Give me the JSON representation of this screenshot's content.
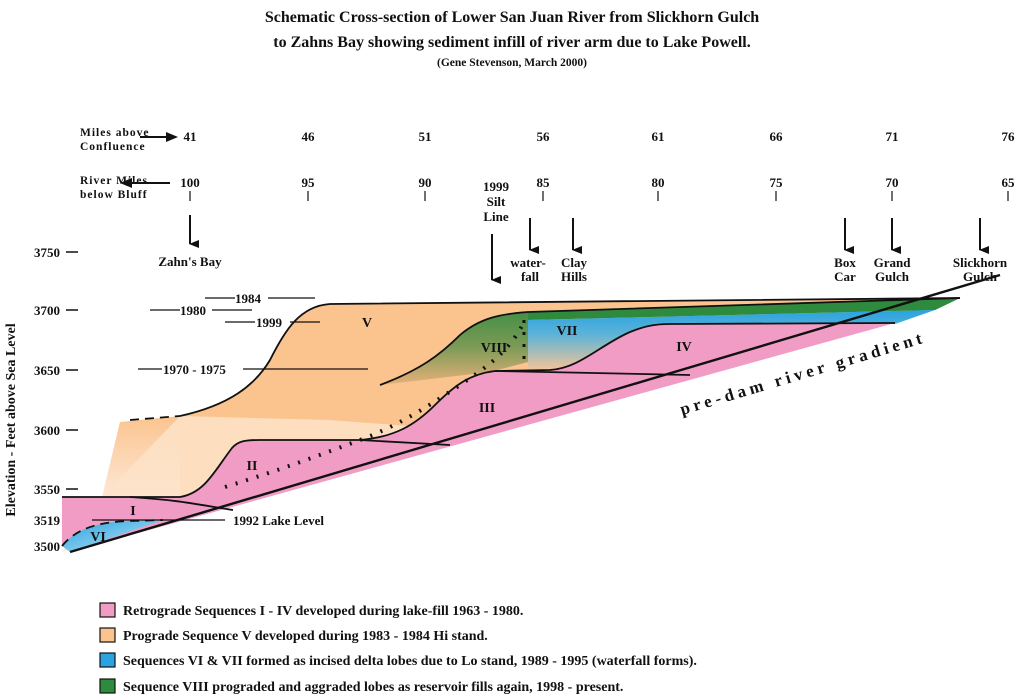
{
  "title": {
    "line1": "Schematic Cross-section of Lower San Juan River from Slickhorn Gulch",
    "line2": "to Zahns Bay showing sediment infill of river arm due to Lake Powell.",
    "credit": "(Gene Stevenson, March 2000)"
  },
  "top_axis": {
    "label_line1": "Miles above",
    "label_line2": "Confluence",
    "values": [
      "41",
      "46",
      "51",
      "56",
      "61",
      "66",
      "71",
      "76"
    ]
  },
  "river_axis": {
    "label_line1": "River Miles",
    "label_line2": "below Bluff",
    "values": [
      "100",
      "95",
      "90",
      "85",
      "80",
      "75",
      "70",
      "65"
    ]
  },
  "y_axis": {
    "title": "Elevation - Feet above Sea Level",
    "ticks": [
      "3750",
      "3700",
      "3650",
      "3600",
      "3550",
      "3519",
      "3500"
    ]
  },
  "locations": {
    "zahns_bay": "Zahn's Bay",
    "silt1": "1999",
    "silt2": "Silt",
    "silt3": "Line",
    "waterfall1": "water-",
    "waterfall2": "fall",
    "clay1": "Clay",
    "clay2": "Hills",
    "box1": "Box",
    "box2": "Car",
    "grand1": "Grand",
    "grand2": "Gulch",
    "slick1": "Slickhorn",
    "slick2": "Gulch"
  },
  "levels": {
    "y1984": "1984",
    "y1980": "1980",
    "y1999": "1999",
    "y1970": "1970 - 1975",
    "lake1992": "1992 Lake Level"
  },
  "sequences": {
    "I": "I",
    "II": "II",
    "III": "III",
    "IV": "IV",
    "V": "V",
    "VI": "VI",
    "VII": "VII",
    "VIII": "VIII"
  },
  "gradient_label": "pre-dam river gradient",
  "colors": {
    "pink": "#f09cc4",
    "orange": "#fbc48f",
    "blue": "#2aa3e0",
    "green": "#2e8b3e"
  },
  "legend": [
    {
      "text": "Retrograde Sequences I - IV developed during lake-fill 1963 - 1980.",
      "color": "#f09cc4"
    },
    {
      "text": "Prograde Sequence V developed during 1983 - 1984 Hi stand.",
      "color": "#fbc48f"
    },
    {
      "text": "Sequences VI & VII formed as incised delta lobes due to Lo stand, 1989 - 1995 (waterfall forms).",
      "color": "#2aa3e0"
    },
    {
      "text": "Sequence VIII prograded and aggraded lobes as reservoir fills again, 1998 - present.",
      "color": "#2e8b3e"
    }
  ]
}
